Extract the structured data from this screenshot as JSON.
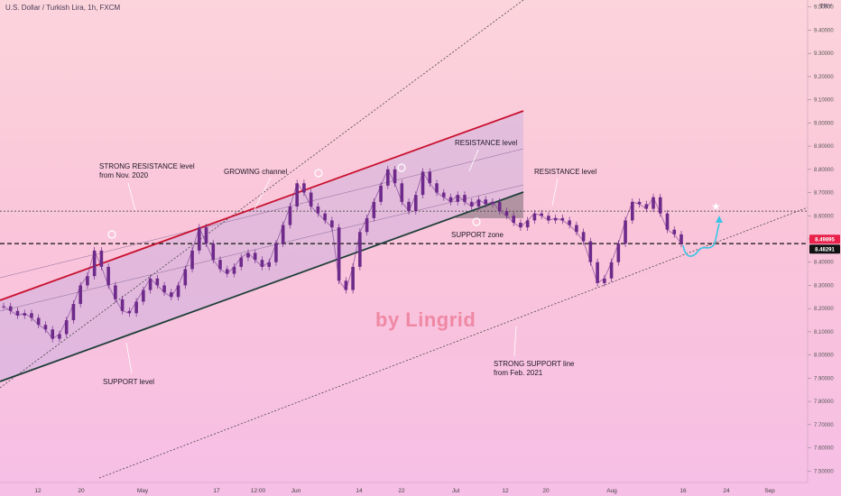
{
  "header": {
    "title": "U.S. Dollar / Turkish Lira, 1h, FXCM",
    "currency": "TRY"
  },
  "watermark": "by Lingrid",
  "annotations": {
    "strong_resistance": "STRONG RESISTANCE level\nfrom Nov. 2020",
    "growing_channel": "GROWING channel",
    "resistance_level_1": "RESISTANCE level",
    "resistance_level_2": "RESISTANCE level",
    "support_zone": "SUPPORT zone",
    "support_level": "SUPPORT level",
    "strong_support": "STRONG SUPPORT line\nfrom Feb. 2021"
  },
  "colors": {
    "candles": "#6d2a8a",
    "channel_top": "#c8102e",
    "channel_bottom": "#1f3f3a",
    "projection": "#39c4e6",
    "badge_red": "#e8204a",
    "badge_dark": "#111111"
  },
  "chart_data": {
    "type": "line",
    "series": [
      {
        "values": [
          8.21,
          8.19,
          8.17,
          8.18,
          8.16,
          8.13,
          8.11,
          8.07,
          8.09,
          8.15,
          8.22,
          8.3,
          8.34,
          8.45,
          8.38,
          8.3,
          8.24,
          8.19,
          8.18,
          8.23,
          8.28,
          8.33,
          8.3,
          8.27,
          8.25,
          8.3,
          8.37,
          8.45,
          8.55,
          8.48,
          8.41,
          8.37,
          8.35,
          8.38,
          8.42,
          8.44,
          8.41,
          8.38,
          8.4,
          8.48,
          8.56,
          8.64,
          8.74,
          8.7,
          8.64,
          8.61,
          8.58,
          8.55,
          8.32,
          8.28,
          8.38,
          8.53,
          8.59,
          8.66,
          8.73,
          8.8,
          8.74,
          8.66,
          8.62,
          8.69,
          8.79,
          8.74,
          8.7,
          8.68,
          8.66,
          8.69,
          8.66,
          8.64,
          8.67,
          8.65,
          8.66,
          8.62,
          8.6,
          8.57,
          8.55,
          8.58,
          8.61,
          8.6,
          8.58,
          8.59,
          8.58,
          8.56,
          8.53,
          8.49,
          8.4,
          8.31,
          8.33,
          8.4,
          8.48,
          8.58,
          8.66,
          8.65,
          8.63,
          8.68,
          8.61,
          8.54,
          8.52,
          8.48
        ]
      }
    ],
    "x_tick_labels": [
      "12",
      "20",
      "May",
      "17",
      "12:00",
      "Jun",
      "14",
      "22",
      "Jul",
      "12",
      "20",
      "Aug",
      "16",
      "24",
      "Sep"
    ],
    "y_tick_labels": [
      "9.50000",
      "9.40000",
      "9.30000",
      "9.20000",
      "9.10000",
      "9.00000",
      "8.90000",
      "8.80000",
      "8.70000",
      "8.60000",
      "8.50000",
      "8.40000",
      "8.30000",
      "8.20000",
      "8.10000",
      "8.00000",
      "7.90000",
      "7.80000",
      "7.70000",
      "7.60000",
      "7.50000"
    ],
    "ylim": [
      7.47,
      9.53
    ],
    "price_labels": {
      "last": "8.49895",
      "level": "8.48291"
    },
    "levels": {
      "resistance": 8.62,
      "support": 8.48
    },
    "grid": false
  }
}
